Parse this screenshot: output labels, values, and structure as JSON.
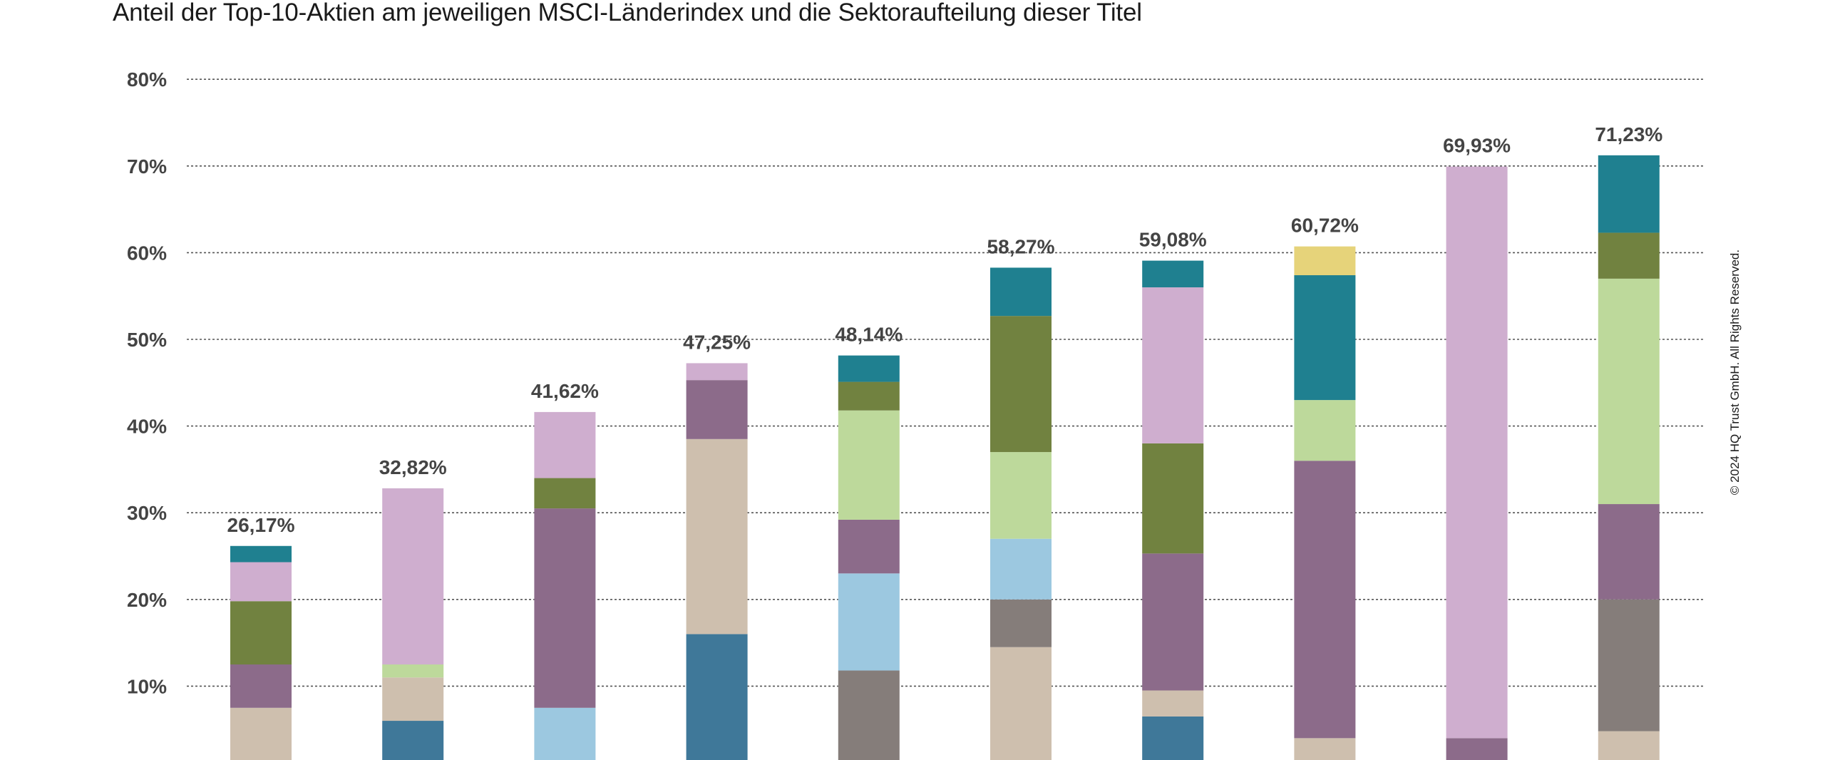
{
  "chart_data": {
    "type": "bar",
    "stacked": true,
    "title": "Anteil der Top-10-Aktien am jeweiligen MSCI-Länderindex und die Sektoraufteilung dieser Titel",
    "ylim": [
      0,
      80
    ],
    "yticks": [
      "10%",
      "20%",
      "30%",
      "40%",
      "50%",
      "60%",
      "70%",
      "80%"
    ],
    "grid": true,
    "totals": [
      "26,17%",
      "32,82%",
      "41,62%",
      "47,25%",
      "48,14%",
      "58,27%",
      "59,08%",
      "60,72%",
      "69,93%",
      "71,23%"
    ],
    "colors": {
      "beige": "#cebfae",
      "steelblue": "#3f7899",
      "lightblue": "#9cc8e0",
      "gray": "#857d7a",
      "purple": "#8c6b8a",
      "lightgreen": "#bdd99b",
      "green": "#718240",
      "pink": "#cfaecf",
      "teal": "#1f8090",
      "yellow": "#e6d37a"
    },
    "bars": [
      {
        "segments": [
          {
            "color": "beige",
            "value": 7.5
          },
          {
            "color": "purple",
            "value": 5.0
          },
          {
            "color": "green",
            "value": 7.3
          },
          {
            "color": "pink",
            "value": 4.5
          },
          {
            "color": "teal",
            "value": 1.87
          }
        ]
      },
      {
        "segments": [
          {
            "color": "steelblue",
            "value": 6.0
          },
          {
            "color": "beige",
            "value": 5.0
          },
          {
            "color": "lightgreen",
            "value": 1.5
          },
          {
            "color": "pink",
            "value": 20.32
          }
        ]
      },
      {
        "segments": [
          {
            "color": "lightblue",
            "value": 7.5
          },
          {
            "color": "purple",
            "value": 23.0
          },
          {
            "color": "green",
            "value": 3.5
          },
          {
            "color": "pink",
            "value": 7.62
          }
        ]
      },
      {
        "segments": [
          {
            "color": "steelblue",
            "value": 16.0
          },
          {
            "color": "beige",
            "value": 22.5
          },
          {
            "color": "purple",
            "value": 6.8
          },
          {
            "color": "pink",
            "value": 1.95
          }
        ]
      },
      {
        "segments": [
          {
            "color": "gray",
            "value": 11.8
          },
          {
            "color": "lightblue",
            "value": 11.2
          },
          {
            "color": "purple",
            "value": 6.2
          },
          {
            "color": "lightgreen",
            "value": 12.6
          },
          {
            "color": "green",
            "value": 3.3
          },
          {
            "color": "teal",
            "value": 3.04
          }
        ]
      },
      {
        "segments": [
          {
            "color": "beige",
            "value": 14.5
          },
          {
            "color": "gray",
            "value": 5.5
          },
          {
            "color": "lightblue",
            "value": 7.0
          },
          {
            "color": "lightgreen",
            "value": 10.0
          },
          {
            "color": "green",
            "value": 15.7
          },
          {
            "color": "teal",
            "value": 5.57
          }
        ]
      },
      {
        "segments": [
          {
            "color": "steelblue",
            "value": 6.5
          },
          {
            "color": "beige",
            "value": 3.0
          },
          {
            "color": "purple",
            "value": 15.8
          },
          {
            "color": "green",
            "value": 12.7
          },
          {
            "color": "pink",
            "value": 18.0
          },
          {
            "color": "teal",
            "value": 3.08
          }
        ]
      },
      {
        "segments": [
          {
            "color": "beige",
            "value": 4.0
          },
          {
            "color": "purple",
            "value": 32.0
          },
          {
            "color": "lightgreen",
            "value": 7.0
          },
          {
            "color": "teal",
            "value": 14.4
          },
          {
            "color": "yellow",
            "value": 3.32
          }
        ]
      },
      {
        "segments": [
          {
            "color": "purple",
            "value": 4.0
          },
          {
            "color": "pink",
            "value": 65.93
          }
        ]
      },
      {
        "segments": [
          {
            "color": "beige",
            "value": 4.8
          },
          {
            "color": "gray",
            "value": 15.2
          },
          {
            "color": "purple",
            "value": 11.0
          },
          {
            "color": "lightgreen",
            "value": 26.0
          },
          {
            "color": "green",
            "value": 5.3
          },
          {
            "color": "teal",
            "value": 8.93
          }
        ]
      }
    ]
  },
  "copyright": "© 2024 HQ Trust GmbH. All Rights Reserved."
}
